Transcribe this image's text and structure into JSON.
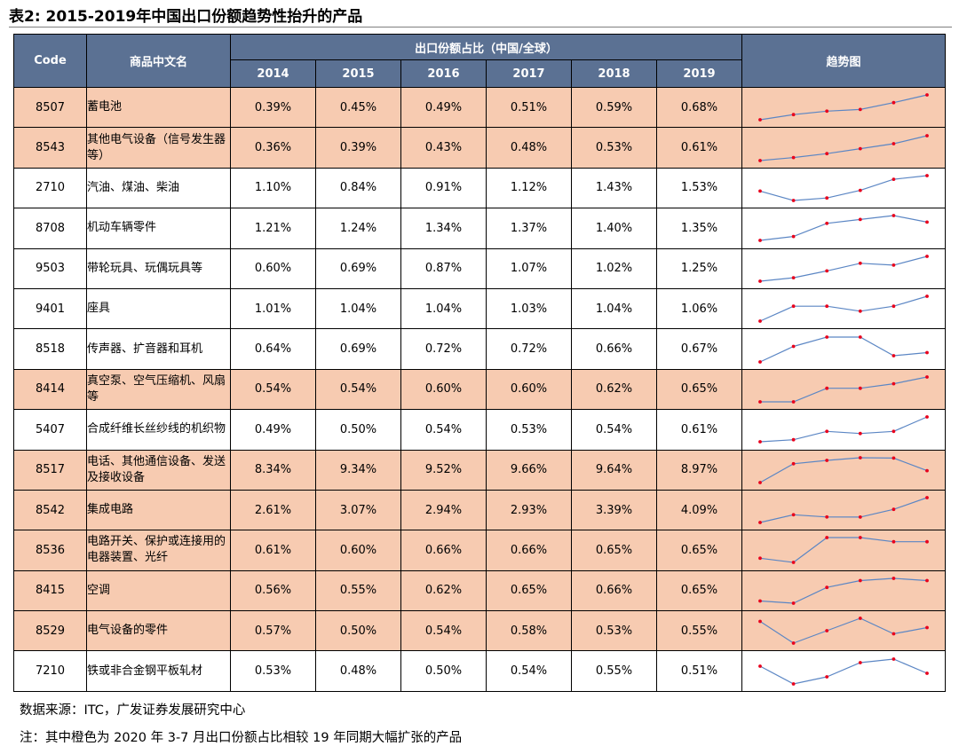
{
  "title": "表2: 2015-2019年中国出口份额趋势性抬升的产品",
  "header": {
    "code": "Code",
    "name": "商品中文名",
    "group": "出口份额占比（中国/全球）",
    "years": [
      "2014",
      "2015",
      "2016",
      "2017",
      "2018",
      "2019"
    ],
    "trend": "趋势图"
  },
  "colors": {
    "header_bg": "#5b7193",
    "highlight_row": "#f7cbb1",
    "trend_line": "#5b86c4",
    "trend_marker": "#e8001c"
  },
  "rows": [
    {
      "code": "8507",
      "name": "蓄电池",
      "highlight": true,
      "values": [
        "0.39%",
        "0.45%",
        "0.49%",
        "0.51%",
        "0.59%",
        "0.68%"
      ]
    },
    {
      "code": "8543",
      "name": "其他电气设备（信号发生器等）",
      "highlight": true,
      "values": [
        "0.36%",
        "0.39%",
        "0.43%",
        "0.48%",
        "0.53%",
        "0.61%"
      ]
    },
    {
      "code": "2710",
      "name": "汽油、煤油、柴油",
      "highlight": false,
      "values": [
        "1.10%",
        "0.84%",
        "0.91%",
        "1.12%",
        "1.43%",
        "1.53%"
      ]
    },
    {
      "code": "8708",
      "name": "机动车辆零件",
      "highlight": false,
      "values": [
        "1.21%",
        "1.24%",
        "1.34%",
        "1.37%",
        "1.40%",
        "1.35%"
      ]
    },
    {
      "code": "9503",
      "name": "带轮玩具、玩偶玩具等",
      "highlight": false,
      "values": [
        "0.60%",
        "0.69%",
        "0.87%",
        "1.07%",
        "1.02%",
        "1.25%"
      ]
    },
    {
      "code": "9401",
      "name": "座具",
      "highlight": false,
      "values": [
        "1.01%",
        "1.04%",
        "1.04%",
        "1.03%",
        "1.04%",
        "1.06%"
      ]
    },
    {
      "code": "8518",
      "name": "传声器、扩音器和耳机",
      "highlight": false,
      "values": [
        "0.64%",
        "0.69%",
        "0.72%",
        "0.72%",
        "0.66%",
        "0.67%"
      ]
    },
    {
      "code": "8414",
      "name": "真空泵、空气压缩机、风扇等",
      "highlight": true,
      "values": [
        "0.54%",
        "0.54%",
        "0.60%",
        "0.60%",
        "0.62%",
        "0.65%"
      ]
    },
    {
      "code": "5407",
      "name": "合成纤维长丝纱线的机织物",
      "highlight": false,
      "values": [
        "0.49%",
        "0.50%",
        "0.54%",
        "0.53%",
        "0.54%",
        "0.61%"
      ]
    },
    {
      "code": "8517",
      "name": "电话、其他通信设备、发送及接收设备",
      "highlight": true,
      "values": [
        "8.34%",
        "9.34%",
        "9.52%",
        "9.66%",
        "9.64%",
        "8.97%"
      ]
    },
    {
      "code": "8542",
      "name": "集成电路",
      "highlight": true,
      "values": [
        "2.61%",
        "3.07%",
        "2.94%",
        "2.93%",
        "3.39%",
        "4.09%"
      ]
    },
    {
      "code": "8536",
      "name": "电路开关、保护或连接用的电器装置、光纤",
      "highlight": true,
      "values": [
        "0.61%",
        "0.60%",
        "0.66%",
        "0.66%",
        "0.65%",
        "0.65%"
      ]
    },
    {
      "code": "8415",
      "name": "空调",
      "highlight": true,
      "values": [
        "0.56%",
        "0.55%",
        "0.62%",
        "0.65%",
        "0.66%",
        "0.65%"
      ]
    },
    {
      "code": "8529",
      "name": "电气设备的零件",
      "highlight": true,
      "values": [
        "0.57%",
        "0.50%",
        "0.54%",
        "0.58%",
        "0.53%",
        "0.55%"
      ]
    },
    {
      "code": "7210",
      "name": "铁或非合金钢平板轧材",
      "highlight": false,
      "values": [
        "0.53%",
        "0.48%",
        "0.50%",
        "0.54%",
        "0.55%",
        "0.51%"
      ]
    }
  ],
  "footer": {
    "source": "数据来源：ITC，广发证券发展研究中心",
    "note": "注：其中橙色为 2020 年 3-7 月出口份额占比相较 19 年同期大幅扩张的产品"
  }
}
